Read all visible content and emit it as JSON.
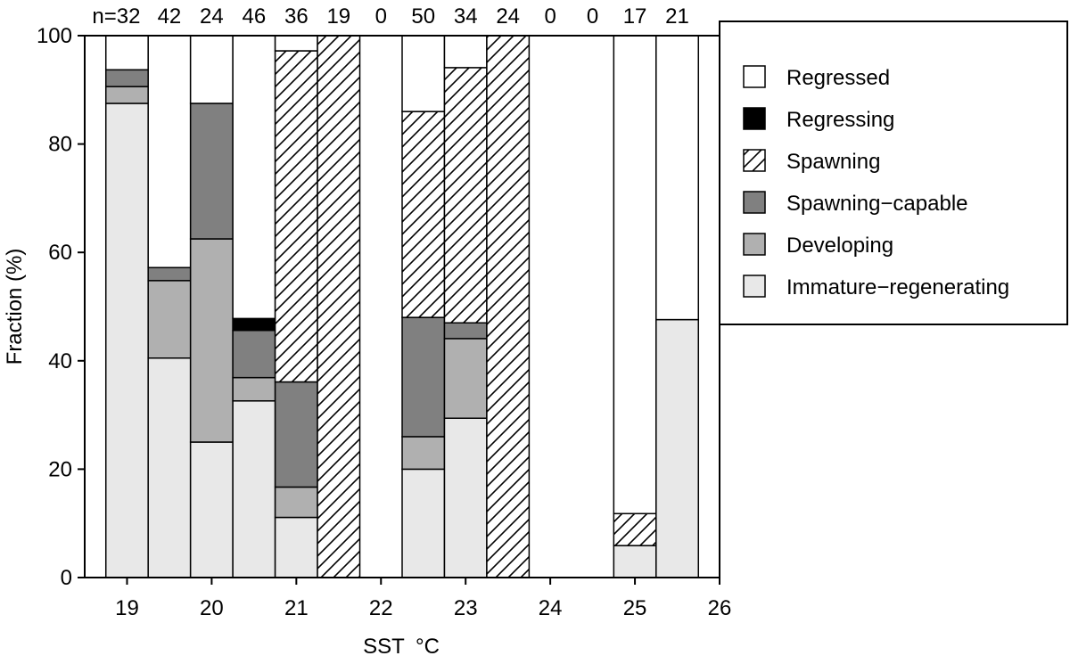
{
  "chart_data": {
    "type": "bar",
    "stacked": true,
    "title": "",
    "xlabel": "SST",
    "xlabel_unit": "°C",
    "ylabel": "Fraction (%)",
    "ylim": [
      0,
      100
    ],
    "yticks": [
      0,
      20,
      40,
      60,
      80,
      100
    ],
    "xticks": [
      "19",
      "20",
      "21",
      "22",
      "23",
      "24",
      "25",
      "26"
    ],
    "counts": [
      "n=32",
      "42",
      "24",
      "46",
      "36",
      "19",
      "0",
      "50",
      "34",
      "24",
      "0",
      "0",
      "17",
      "21"
    ],
    "categories": [
      "19.0",
      "19.5",
      "20.0",
      "20.5",
      "21.0",
      "21.5",
      "22.0",
      "22.5",
      "23.0",
      "23.5",
      "24.0",
      "24.5",
      "25.0",
      "25.5"
    ],
    "legend_position": "right",
    "series": [
      {
        "name": "Immature−regenerating",
        "color": "#e8e8e8",
        "pattern": "none",
        "values": [
          87.5,
          40.5,
          25.0,
          32.6,
          11.1,
          0,
          0,
          20.0,
          29.4,
          0,
          0,
          0,
          5.9,
          47.6
        ]
      },
      {
        "name": "Developing",
        "color": "#b0b0b0",
        "pattern": "none",
        "values": [
          3.1,
          14.3,
          37.5,
          4.3,
          5.6,
          0,
          0,
          6.0,
          14.7,
          0,
          0,
          0,
          0,
          0
        ]
      },
      {
        "name": "Spawning−capable",
        "color": "#808080",
        "pattern": "none",
        "values": [
          3.1,
          2.4,
          25.0,
          8.7,
          19.4,
          0,
          0,
          22.0,
          2.9,
          0,
          0,
          0,
          0,
          0
        ]
      },
      {
        "name": "Spawning",
        "color": "#ffffff",
        "pattern": "hatch",
        "values": [
          0,
          0,
          0,
          0,
          61.1,
          100,
          0,
          38.0,
          47.1,
          100,
          0,
          0,
          5.9,
          0
        ]
      },
      {
        "name": "Regressing",
        "color": "#000000",
        "pattern": "none",
        "values": [
          0,
          0,
          0,
          2.2,
          0,
          0,
          0,
          0,
          0,
          0,
          0,
          0,
          0,
          0
        ]
      },
      {
        "name": "Regressed",
        "color": "#ffffff",
        "pattern": "none",
        "values": [
          6.3,
          42.8,
          12.5,
          52.2,
          2.8,
          0,
          0,
          14.0,
          5.9,
          0,
          0,
          0,
          88.2,
          52.4
        ]
      }
    ],
    "legend_order": [
      "Regressed",
      "Regressing",
      "Spawning",
      "Spawning−capable",
      "Developing",
      "Immature−regenerating"
    ]
  }
}
